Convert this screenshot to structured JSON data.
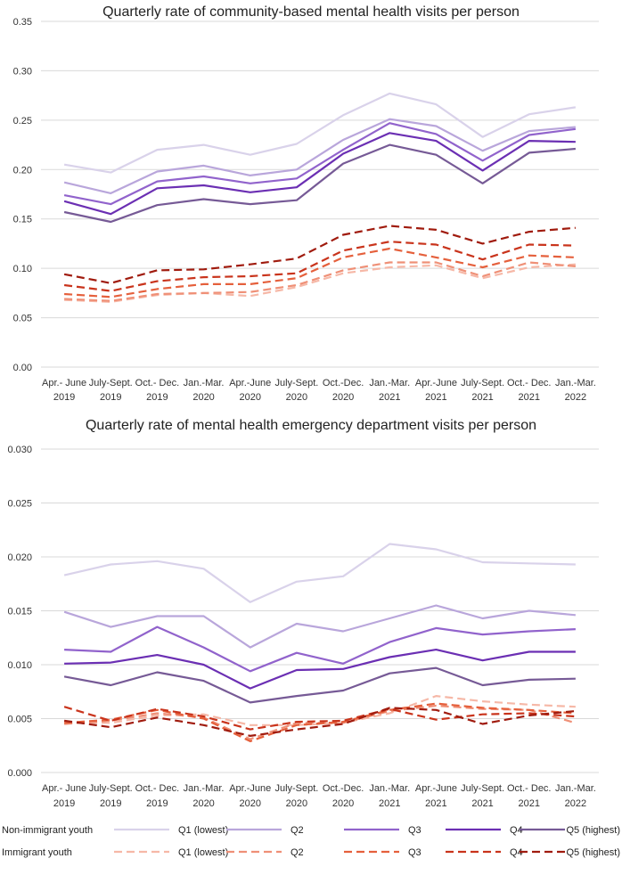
{
  "chart_data": [
    {
      "type": "line",
      "title": "Quarterly rate of community-based mental health visits per person",
      "ylim": [
        0,
        0.35
      ],
      "yticks": [
        "0.00",
        "0.05",
        "0.10",
        "0.15",
        "0.20",
        "0.25",
        "0.30",
        "0.35"
      ],
      "ytick_values": [
        0,
        0.05,
        0.1,
        0.15,
        0.2,
        0.25,
        0.3,
        0.35
      ],
      "categories": [
        [
          "Apr.- June",
          "2019"
        ],
        [
          "July-Sept.",
          "2019"
        ],
        [
          "Oct.- Dec.",
          "2019"
        ],
        [
          "Jan.-Mar.",
          "2020"
        ],
        [
          "Apr.-June",
          "2020"
        ],
        [
          "July-Sept.",
          "2020"
        ],
        [
          "Oct.-Dec.",
          "2020"
        ],
        [
          "Jan.-Mar.",
          "2021"
        ],
        [
          "Apr.-June",
          "2021"
        ],
        [
          "July-Sept.",
          "2021"
        ],
        [
          "Oct.- Dec.",
          "2021"
        ],
        [
          "Jan.-Mar.",
          "2022"
        ]
      ],
      "series": [
        {
          "name": "Non-immigrant youth Q1 (lowest)",
          "color": "#d9d2ea",
          "dash": false,
          "values": [
            0.205,
            0.197,
            0.22,
            0.225,
            0.215,
            0.226,
            0.255,
            0.277,
            0.266,
            0.233,
            0.256,
            0.263
          ]
        },
        {
          "name": "Non-immigrant youth Q2",
          "color": "#b9a6db",
          "dash": false,
          "values": [
            0.187,
            0.176,
            0.198,
            0.204,
            0.194,
            0.2,
            0.23,
            0.251,
            0.244,
            0.219,
            0.239,
            0.243
          ]
        },
        {
          "name": "Non-immigrant youth Q3",
          "color": "#9163cc",
          "dash": false,
          "values": [
            0.174,
            0.165,
            0.188,
            0.193,
            0.186,
            0.191,
            0.22,
            0.247,
            0.236,
            0.209,
            0.235,
            0.241
          ]
        },
        {
          "name": "Non-immigrant youth Q4",
          "color": "#6b2fb3",
          "dash": false,
          "values": [
            0.168,
            0.155,
            0.181,
            0.184,
            0.177,
            0.182,
            0.216,
            0.237,
            0.229,
            0.199,
            0.229,
            0.228
          ]
        },
        {
          "name": "Non-immigrant youth Q5 (highest)",
          "color": "#765a96",
          "dash": false,
          "values": [
            0.157,
            0.147,
            0.164,
            0.17,
            0.165,
            0.169,
            0.206,
            0.225,
            0.215,
            0.186,
            0.217,
            0.221
          ]
        },
        {
          "name": "Immigrant youth Q1 (lowest)",
          "color": "#f6b8a7",
          "dash": true,
          "values": [
            0.068,
            0.066,
            0.073,
            0.075,
            0.072,
            0.081,
            0.095,
            0.101,
            0.103,
            0.09,
            0.101,
            0.104
          ]
        },
        {
          "name": "Immigrant youth Q2",
          "color": "#ef9077",
          "dash": true,
          "values": [
            0.069,
            0.067,
            0.074,
            0.075,
            0.076,
            0.083,
            0.098,
            0.106,
            0.106,
            0.092,
            0.106,
            0.102
          ]
        },
        {
          "name": "Immigrant youth Q3",
          "color": "#e5603c",
          "dash": true,
          "values": [
            0.074,
            0.071,
            0.079,
            0.084,
            0.084,
            0.09,
            0.111,
            0.12,
            0.111,
            0.101,
            0.113,
            0.111
          ]
        },
        {
          "name": "Immigrant youth Q4",
          "color": "#c9341c",
          "dash": true,
          "values": [
            0.083,
            0.077,
            0.087,
            0.091,
            0.092,
            0.095,
            0.118,
            0.127,
            0.124,
            0.109,
            0.124,
            0.123
          ]
        },
        {
          "name": "Immigrant youth Q5 (highest)",
          "color": "#a01b0e",
          "dash": true,
          "values": [
            0.094,
            0.085,
            0.098,
            0.099,
            0.104,
            0.11,
            0.134,
            0.143,
            0.139,
            0.125,
            0.137,
            0.141
          ]
        }
      ]
    },
    {
      "type": "line",
      "title": "Quarterly rate of mental health emergency department visits per person",
      "ylim": [
        0,
        0.03
      ],
      "yticks": [
        "0.000",
        "0.005",
        "0.010",
        "0.015",
        "0.020",
        "0.025",
        "0.030"
      ],
      "ytick_values": [
        0,
        0.005,
        0.01,
        0.015,
        0.02,
        0.025,
        0.03
      ],
      "categories": [
        [
          "Apr.- June",
          "2019"
        ],
        [
          "July-Sept.",
          "2019"
        ],
        [
          "Oct.- Dec.",
          "2019"
        ],
        [
          "Jan.-Mar.",
          "2020"
        ],
        [
          "Apr.-June",
          "2020"
        ],
        [
          "July-Sept.",
          "2020"
        ],
        [
          "Oct.-Dec.",
          "2020"
        ],
        [
          "Jan.-Mar.",
          "2021"
        ],
        [
          "Apr.-June",
          "2021"
        ],
        [
          "July-Sept.",
          "2021"
        ],
        [
          "Oct.- Dec.",
          "2021"
        ],
        [
          "Jan.-Mar.",
          "2022"
        ]
      ],
      "series": [
        {
          "name": "Non-immigrant youth Q1 (lowest)",
          "color": "#d9d2ea",
          "dash": false,
          "values": [
            0.0183,
            0.0193,
            0.0196,
            0.0189,
            0.0158,
            0.0177,
            0.0182,
            0.0212,
            0.0207,
            0.0195,
            0.0194,
            0.0193
          ]
        },
        {
          "name": "Non-immigrant youth Q2",
          "color": "#b9a6db",
          "dash": false,
          "values": [
            0.0149,
            0.0135,
            0.0145,
            0.0145,
            0.0116,
            0.0138,
            0.0131,
            0.0143,
            0.0155,
            0.0143,
            0.015,
            0.0146
          ]
        },
        {
          "name": "Non-immigrant youth Q3",
          "color": "#9163cc",
          "dash": false,
          "values": [
            0.0114,
            0.0112,
            0.0135,
            0.0116,
            0.0094,
            0.0111,
            0.0101,
            0.0121,
            0.0134,
            0.0128,
            0.0131,
            0.0133
          ]
        },
        {
          "name": "Non-immigrant youth Q4",
          "color": "#6b2fb3",
          "dash": false,
          "values": [
            0.0101,
            0.0102,
            0.0109,
            0.01,
            0.0078,
            0.0095,
            0.0096,
            0.0107,
            0.0114,
            0.0104,
            0.0112,
            0.0112
          ]
        },
        {
          "name": "Non-immigrant youth Q5 (highest)",
          "color": "#765a96",
          "dash": false,
          "values": [
            0.0089,
            0.0081,
            0.0093,
            0.0085,
            0.0065,
            0.0071,
            0.0076,
            0.0092,
            0.0097,
            0.0081,
            0.0086,
            0.0087
          ]
        },
        {
          "name": "Immigrant youth Q1 (lowest)",
          "color": "#f6b8a7",
          "dash": true,
          "values": [
            0.0046,
            0.0046,
            0.0053,
            0.0054,
            0.0044,
            0.0044,
            0.0046,
            0.0055,
            0.0071,
            0.0066,
            0.0063,
            0.0061
          ]
        },
        {
          "name": "Immigrant youth Q2",
          "color": "#ef9077",
          "dash": true,
          "values": [
            0.0045,
            0.0048,
            0.0055,
            0.0051,
            0.0031,
            0.0046,
            0.0046,
            0.0057,
            0.0062,
            0.0059,
            0.0058,
            0.0046
          ]
        },
        {
          "name": "Immigrant youth Q3",
          "color": "#e5603c",
          "dash": true,
          "values": [
            0.0046,
            0.0049,
            0.0058,
            0.005,
            0.0029,
            0.0044,
            0.0047,
            0.0058,
            0.0064,
            0.006,
            0.0058,
            0.0055
          ]
        },
        {
          "name": "Immigrant youth Q4",
          "color": "#c9341c",
          "dash": true,
          "values": [
            0.0061,
            0.0048,
            0.0059,
            0.0052,
            0.004,
            0.0047,
            0.0048,
            0.0059,
            0.0049,
            0.0054,
            0.0055,
            0.0052
          ]
        },
        {
          "name": "Immigrant youth Q5 (highest)",
          "color": "#a01b0e",
          "dash": true,
          "values": [
            0.0048,
            0.0042,
            0.0051,
            0.0044,
            0.0034,
            0.004,
            0.0045,
            0.006,
            0.0058,
            0.0045,
            0.0053,
            0.0057
          ]
        }
      ]
    }
  ],
  "legend": {
    "rows": [
      {
        "label": "Non-immigrant youth",
        "dash": false,
        "items": [
          {
            "label": "Q1 (lowest)",
            "color": "#d9d2ea"
          },
          {
            "label": "Q2",
            "color": "#b9a6db"
          },
          {
            "label": "Q3",
            "color": "#9163cc"
          },
          {
            "label": "Q4",
            "color": "#6b2fb3"
          },
          {
            "label": "Q5 (highest)",
            "color": "#765a96"
          }
        ]
      },
      {
        "label": "Immigrant youth",
        "dash": true,
        "items": [
          {
            "label": "Q1 (lowest)",
            "color": "#f6b8a7"
          },
          {
            "label": "Q2",
            "color": "#ef9077"
          },
          {
            "label": "Q3",
            "color": "#e5603c"
          },
          {
            "label": "Q4",
            "color": "#c9341c"
          },
          {
            "label": "Q5 (highest)",
            "color": "#a01b0e"
          }
        ]
      }
    ]
  }
}
